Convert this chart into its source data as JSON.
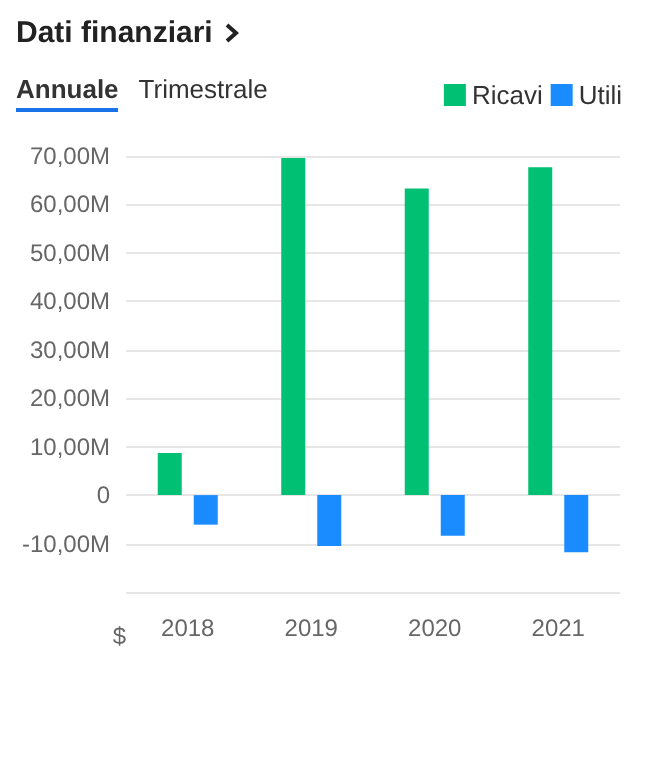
{
  "chart_data": {
    "type": "bar",
    "title": "Dati finanziari",
    "annotations": [
      "Annuale",
      "Trimestrale"
    ],
    "ylabel": "$",
    "categories": [
      "2018",
      "2019",
      "2020",
      "2021"
    ],
    "series": [
      {
        "name": "Ricavi",
        "color": "#00c073",
        "values": [
          8.7,
          69.6,
          63.3,
          67.7
        ]
      },
      {
        "name": "Utili",
        "color": "#1a8cff",
        "values": [
          -6.1,
          -10.5,
          -8.4,
          -11.8
        ]
      }
    ],
    "ylim": [
      -20,
      70
    ],
    "yticks": [
      {
        "value": -20,
        "label": null
      },
      {
        "value": -10,
        "label": "-10,00M"
      },
      0,
      {
        "value": 10,
        "label": "10,00M"
      },
      {
        "value": 20,
        "label": "20,00M"
      },
      {
        "value": 30,
        "label": "30,00M"
      },
      {
        "value": 40,
        "label": "40,00M"
      },
      {
        "value": 50,
        "label": "50,00M"
      },
      {
        "value": 60,
        "label": "60,00M"
      },
      {
        "value": 70,
        "label": "70,00M"
      }
    ],
    "grid": "y",
    "legend": "top right"
  }
}
